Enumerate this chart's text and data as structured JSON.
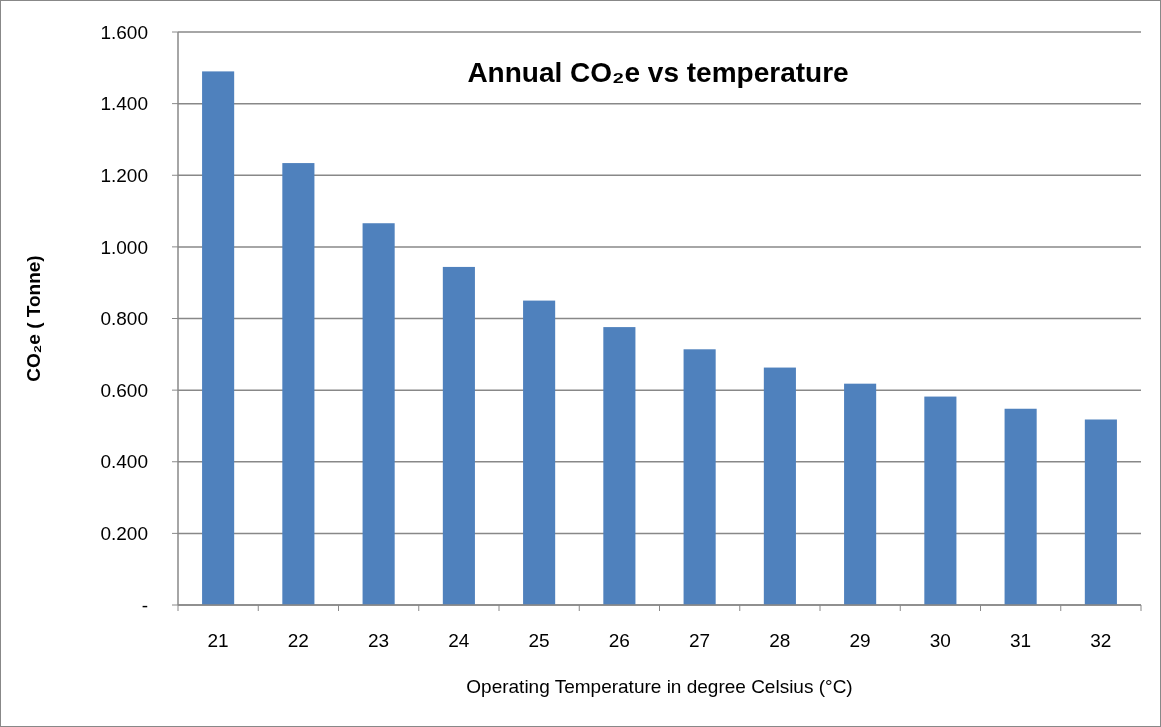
{
  "chart_data": {
    "type": "bar",
    "title": "Annual CO₂e  vs temperature",
    "xlabel": "Operating Temperature in degree  Celsius (°C)",
    "ylabel": "CO₂e   ( Tonne)",
    "categories": [
      "21",
      "22",
      "23",
      "24",
      "25",
      "26",
      "27",
      "28",
      "29",
      "30",
      "31",
      "32"
    ],
    "values": [
      1.49,
      1.234,
      1.066,
      0.944,
      0.85,
      0.776,
      0.714,
      0.663,
      0.618,
      0.582,
      0.548,
      0.518
    ],
    "color": "#4f81bd",
    "ylim": [
      0,
      1.6
    ],
    "yticks": [
      {
        "value": 0,
        "label": "-"
      },
      {
        "value": 0.2,
        "label": "0.200"
      },
      {
        "value": 0.4,
        "label": "0.400"
      },
      {
        "value": 0.6,
        "label": "0.600"
      },
      {
        "value": 0.8,
        "label": "0.800"
      },
      {
        "value": 1.0,
        "label": "1.000"
      },
      {
        "value": 1.2,
        "label": "1.200"
      },
      {
        "value": 1.4,
        "label": "1.400"
      },
      {
        "value": 1.6,
        "label": "1.600"
      }
    ],
    "grid": "y"
  }
}
